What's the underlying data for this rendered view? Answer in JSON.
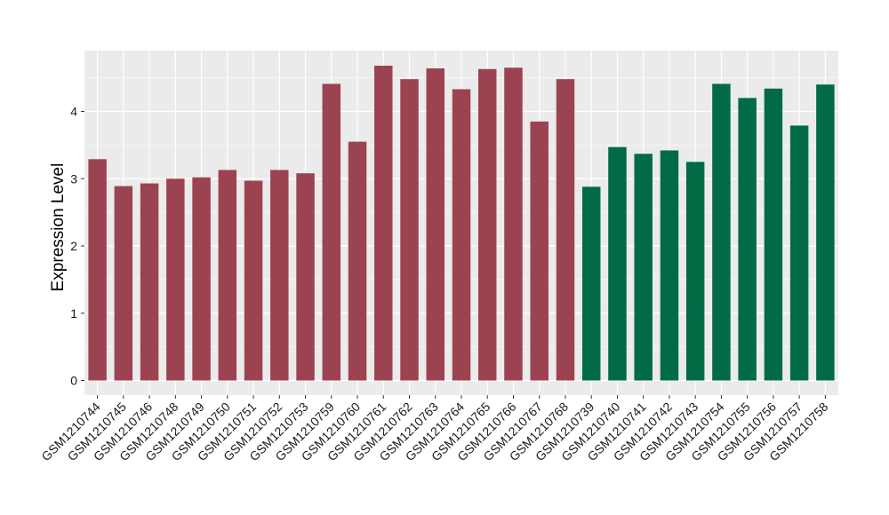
{
  "chart_data": {
    "type": "bar",
    "title": "",
    "xlabel": "",
    "ylabel": "Expression Level",
    "ylim": [
      0,
      4.9
    ],
    "yticks": [
      0,
      1,
      2,
      3,
      4
    ],
    "grid": true,
    "legend": "none",
    "colors": {
      "group1": "#9b4350",
      "group2": "#006b45",
      "panel_bg": "#ebebeb",
      "grid": "#ffffff"
    },
    "categories": [
      "GSM1210744",
      "GSM1210745",
      "GSM1210746",
      "GSM1210748",
      "GSM1210749",
      "GSM1210750",
      "GSM1210751",
      "GSM1210752",
      "GSM1210753",
      "GSM1210759",
      "GSM1210760",
      "GSM1210761",
      "GSM1210762",
      "GSM1210763",
      "GSM1210764",
      "GSM1210765",
      "GSM1210766",
      "GSM1210767",
      "GSM1210768",
      "GSM1210739",
      "GSM1210740",
      "GSM1210741",
      "GSM1210742",
      "GSM1210743",
      "GSM1210754",
      "GSM1210755",
      "GSM1210756",
      "GSM1210757",
      "GSM1210758"
    ],
    "values": [
      3.29,
      2.89,
      2.93,
      3.0,
      3.02,
      3.13,
      2.97,
      3.13,
      3.08,
      4.41,
      3.55,
      4.68,
      4.48,
      4.64,
      4.33,
      4.63,
      4.65,
      3.85,
      4.48,
      2.88,
      3.47,
      3.37,
      3.42,
      3.25,
      4.41,
      4.2,
      4.34,
      3.79,
      4.4
    ],
    "groups": [
      "group1",
      "group1",
      "group1",
      "group1",
      "group1",
      "group1",
      "group1",
      "group1",
      "group1",
      "group1",
      "group1",
      "group1",
      "group1",
      "group1",
      "group1",
      "group1",
      "group1",
      "group1",
      "group1",
      "group2",
      "group2",
      "group2",
      "group2",
      "group2",
      "group2",
      "group2",
      "group2",
      "group2",
      "group2"
    ]
  }
}
